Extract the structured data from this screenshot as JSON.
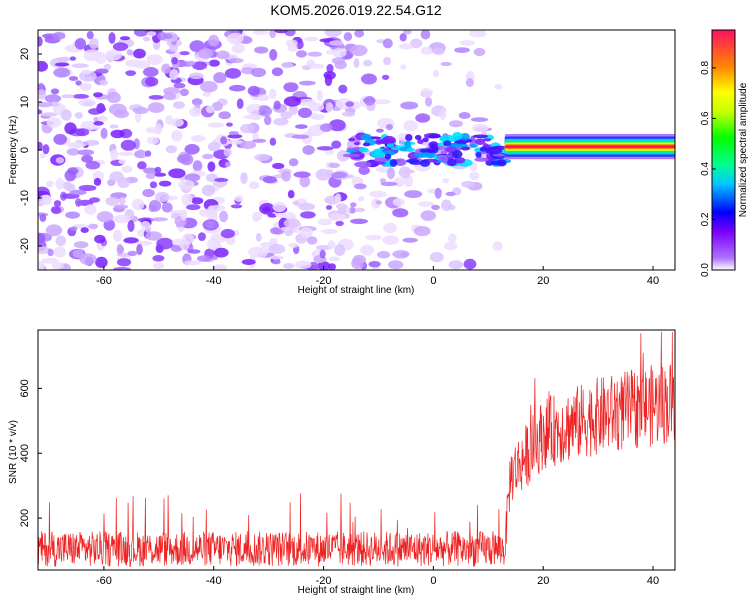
{
  "figure_title": "KOM5.2026.019.22.54.G12",
  "chart_data": [
    {
      "type": "heatmap",
      "title": "KOM5.2026.019.22.54.G12",
      "xlabel": "Height of straight line (km)",
      "ylabel": "Frequency (Hz)",
      "xlim": [
        -72,
        44
      ],
      "ylim": [
        -25,
        25
      ],
      "xticks": [
        -60,
        -40,
        -20,
        0,
        20,
        40
      ],
      "yticks": [
        -20,
        -10,
        0,
        10,
        20
      ],
      "colorbar": {
        "label": "Normalized spectral amplitude",
        "range": [
          0.0,
          0.95
        ],
        "ticks": [
          0.0,
          0.2,
          0.4,
          0.6,
          0.8
        ],
        "colors": [
          "#ffffff",
          "#8800ff",
          "#0000ff",
          "#00ffff",
          "#00ff00",
          "#ffff00",
          "#ff8800",
          "#ff0044"
        ]
      },
      "features": [
        {
          "name": "scattered noise",
          "x_range": [
            -72,
            12
          ],
          "freq_range": [
            -25,
            25
          ],
          "amplitude": 0.05
        },
        {
          "name": "onset burst",
          "x_range": [
            -15,
            13
          ],
          "freq_range": [
            -3,
            3
          ],
          "amplitude": 0.2
        },
        {
          "name": "narrowband line",
          "x_range": [
            13,
            44
          ],
          "freq_center": 0.7,
          "bandwidth": 1.2,
          "amplitude": 0.95
        }
      ]
    },
    {
      "type": "line",
      "xlabel": "Height of straight line (km)",
      "ylabel": "SNR (10 * v/v)",
      "xlim": [
        -72,
        44
      ],
      "ylim": [
        40,
        780
      ],
      "xticks": [
        -60,
        -40,
        -20,
        0,
        20,
        40
      ],
      "yticks": [
        200,
        400,
        600
      ],
      "color": "#ee2222",
      "series": [
        {
          "name": "SNR",
          "x": [
            -72,
            13,
            14,
            20,
            30,
            44
          ],
          "mean": [
            105,
            105,
            330,
            460,
            515,
            560
          ],
          "spread": [
            55,
            55,
            90,
            110,
            120,
            130
          ],
          "max": [
            270,
            290,
            470,
            690,
            780,
            780
          ]
        }
      ]
    }
  ]
}
